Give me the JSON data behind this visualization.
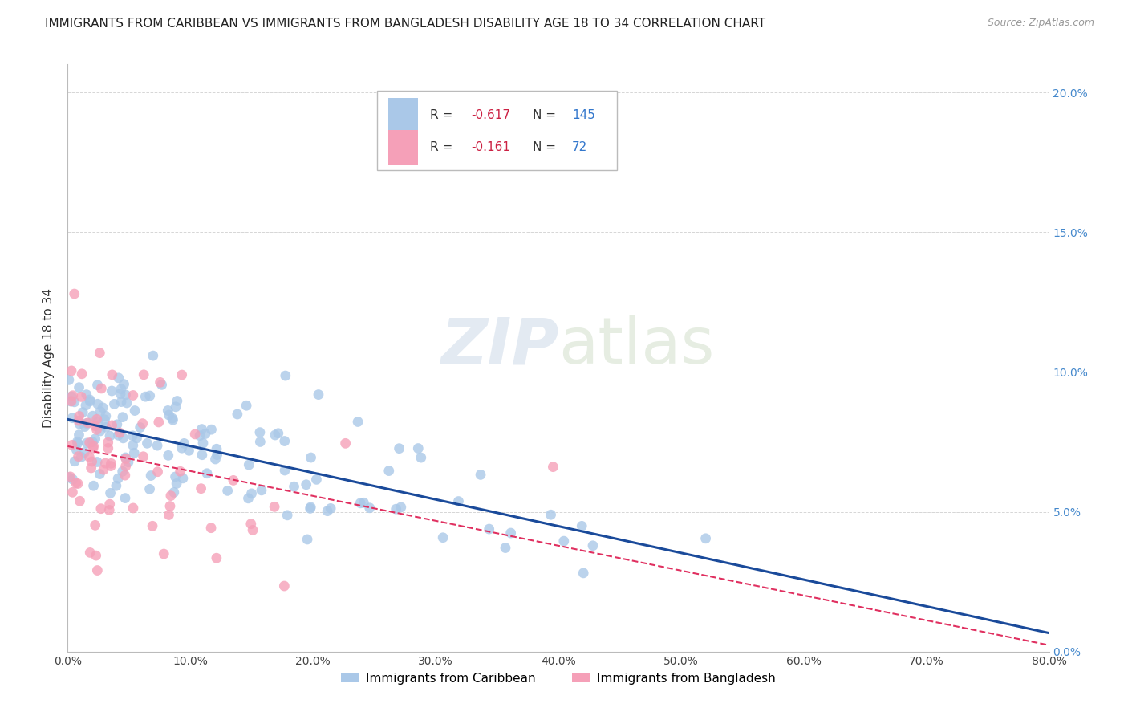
{
  "title": "IMMIGRANTS FROM CARIBBEAN VS IMMIGRANTS FROM BANGLADESH DISABILITY AGE 18 TO 34 CORRELATION CHART",
  "source": "Source: ZipAtlas.com",
  "ylabel": "Disability Age 18 to 34",
  "series1_label": "Immigrants from Caribbean",
  "series2_label": "Immigrants from Bangladesh",
  "series1_color": "#aac8e8",
  "series2_color": "#f5a0b8",
  "series1_line_color": "#1a4a9a",
  "series2_line_color": "#e03060",
  "series1_R": -0.617,
  "series1_N": 145,
  "series2_R": -0.161,
  "series2_N": 72,
  "xlim": [
    0.0,
    0.8
  ],
  "ylim": [
    0.0,
    0.21
  ],
  "xticks": [
    0.0,
    0.1,
    0.2,
    0.3,
    0.4,
    0.5,
    0.6,
    0.7,
    0.8
  ],
  "yticks": [
    0.0,
    0.05,
    0.1,
    0.15,
    0.2
  ],
  "watermark_zip": "ZIP",
  "watermark_atlas": "atlas",
  "background_color": "#ffffff",
  "grid_color": "#cccccc",
  "title_fontsize": 11,
  "axis_label_fontsize": 11,
  "tick_fontsize": 10,
  "right_tick_color": "#4488cc",
  "seed1": 42,
  "seed2": 77
}
